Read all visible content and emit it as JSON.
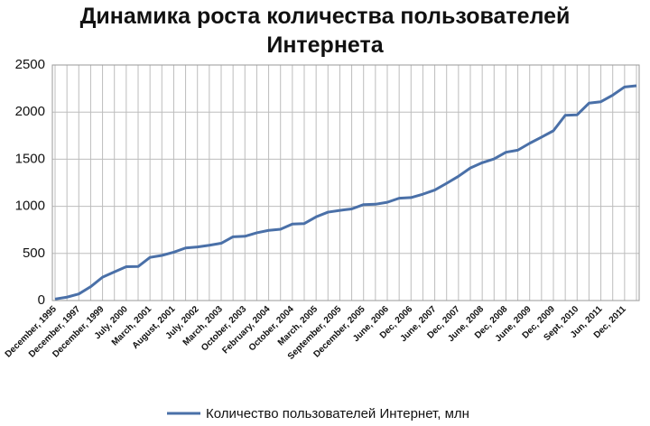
{
  "chart_data": {
    "type": "line",
    "title": "Динамика роста количества пользователей Интернета",
    "categories": [
      "December, 1995",
      null,
      "December, 1997",
      null,
      "December, 1999",
      null,
      "July, 2000",
      null,
      "March, 2001",
      null,
      "August, 2001",
      null,
      "July, 2002",
      null,
      "March, 2003",
      null,
      "October, 2003",
      null,
      "February, 2004",
      null,
      "October, 2004",
      null,
      "March, 2005",
      null,
      "September, 2005",
      null,
      "December, 2005",
      null,
      "June, 2006",
      null,
      "Dec, 2006",
      null,
      "June, 2007",
      null,
      "Dec, 2007",
      null,
      "June, 2008",
      null,
      "Dec, 2008",
      null,
      "June, 2009",
      null,
      "Dec, 2009",
      null,
      "Sept, 2010",
      null,
      "Jun, 2011",
      null,
      "Dec, 2011",
      null
    ],
    "series": [
      {
        "name": "Количество пользователей Интернет, млн",
        "color": "#4a70a8",
        "values": [
          16,
          36,
          70,
          147,
          248,
          304,
          359,
          361,
          458,
          479,
          513,
          558,
          569,
          587,
          608,
          677,
          682,
          719,
          745,
          757,
          812,
          817,
          888,
          938,
          957,
          972,
          1018,
          1022,
          1043,
          1086,
          1093,
          1129,
          1173,
          1244,
          1319,
          1407,
          1463,
          1503,
          1574,
          1596,
          1669,
          1734,
          1802,
          1966,
          1971,
          2095,
          2110,
          2180,
          2267,
          2280
        ]
      }
    ],
    "ylim": [
      0,
      2500
    ],
    "yticks": [
      0,
      500,
      1000,
      1500,
      2000,
      2500
    ],
    "grid": true,
    "legend": "bottom"
  }
}
